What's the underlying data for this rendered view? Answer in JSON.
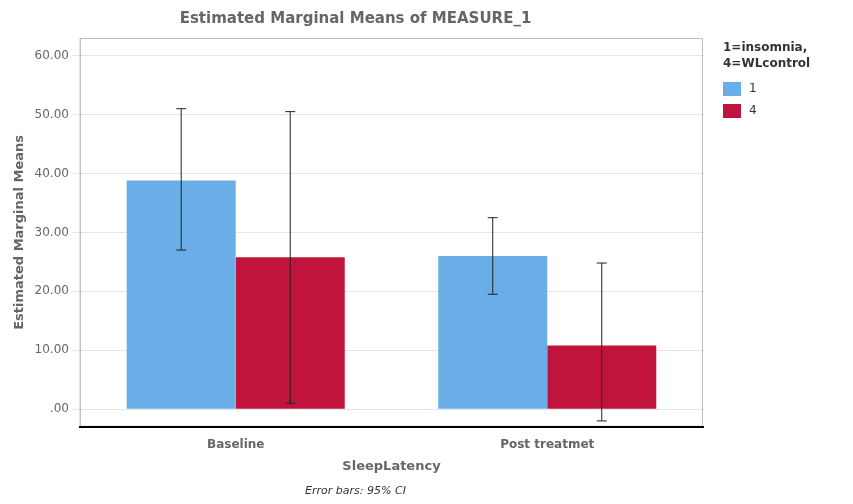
{
  "chart_data": {
    "type": "bar",
    "title": "Estimated Marginal Means of MEASURE_1",
    "xlabel": "SleepLatency",
    "ylabel": "Estimated Marginal Means",
    "annotations": [
      "Error bars: 95% CI"
    ],
    "legend_title": "1=insomnia,\n4=WLcontrol",
    "categories": [
      "Baseline",
      "Post treatmet"
    ],
    "series": [
      {
        "name": "1",
        "color": "#6aaee8",
        "values": [
          38.8,
          26.0
        ],
        "error_lower": [
          27.0,
          19.5
        ],
        "error_upper": [
          51.0,
          32.5
        ]
      },
      {
        "name": "4",
        "color": "#c0143c",
        "values": [
          25.8,
          10.8
        ],
        "error_lower": [
          1.0,
          -2.0
        ],
        "error_upper": [
          50.5,
          24.8
        ]
      }
    ],
    "ylim": [
      -3,
      63
    ],
    "yticks": [
      {
        "value": 0,
        "label": ".00"
      },
      {
        "value": 10,
        "label": "10.00"
      },
      {
        "value": 20,
        "label": "20.00"
      },
      {
        "value": 30,
        "label": "30.00"
      },
      {
        "value": 40,
        "label": "40.00"
      },
      {
        "value": 50,
        "label": "50.00"
      },
      {
        "value": 60,
        "label": "60.00"
      }
    ],
    "grid": true,
    "legend": "right"
  }
}
